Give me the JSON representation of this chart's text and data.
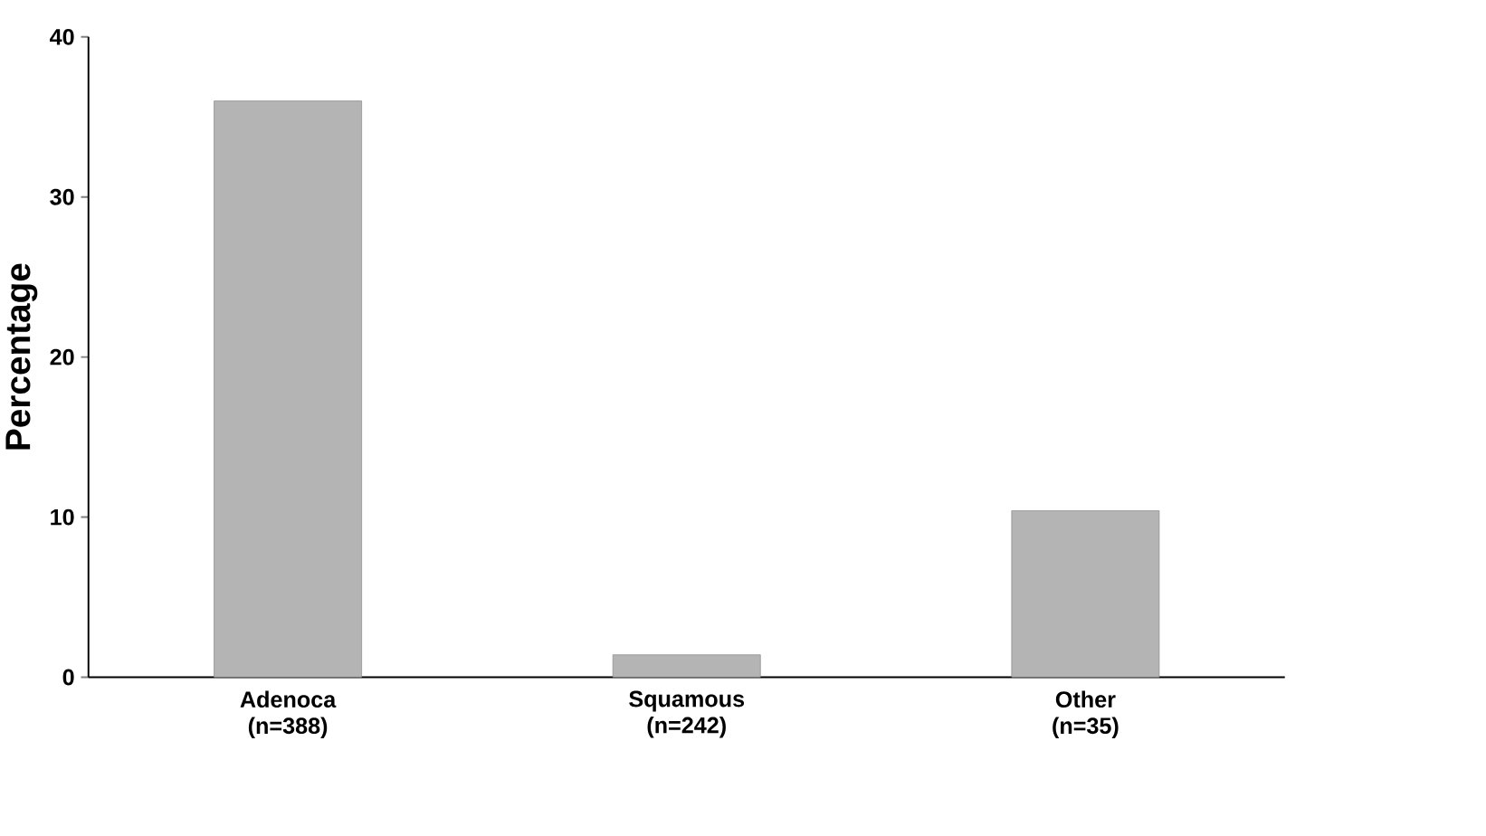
{
  "chart_data": {
    "type": "bar",
    "ylabel": "Percentage",
    "categories": [
      "Adenoca (n=388)",
      "Squamous (n=242)",
      "Other (n=35)"
    ],
    "values": [
      36,
      1.4,
      10.4
    ],
    "color": "#b4b4b4",
    "ylim": [
      0,
      40
    ],
    "yticks": [
      0,
      10,
      20,
      30,
      40
    ]
  }
}
